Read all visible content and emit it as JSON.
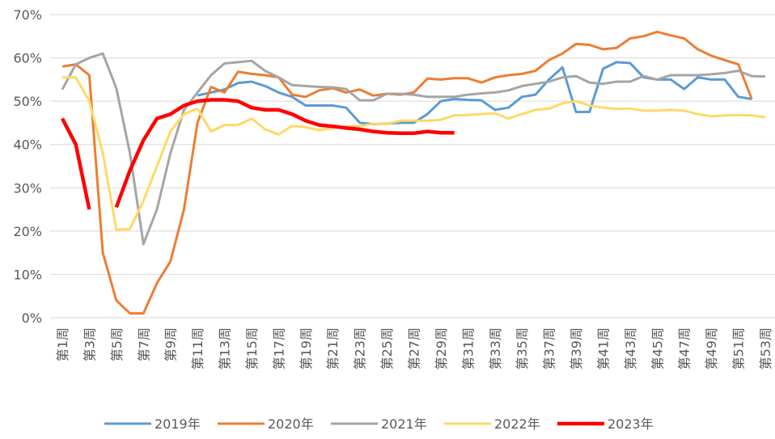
{
  "chart_data": {
    "type": "line",
    "categories": [
      "第1周",
      null,
      "第3周",
      null,
      "第5周",
      null,
      "第7周",
      null,
      "第9周",
      null,
      "第11周",
      null,
      "第13周",
      null,
      "第15周",
      null,
      "第17周",
      null,
      "第19周",
      null,
      "第21周",
      null,
      "第23周",
      null,
      "第25周",
      null,
      "第27周",
      null,
      "第29周",
      null,
      "第31周",
      null,
      "第33周",
      null,
      "第35周",
      null,
      "第37周",
      null,
      "第39周",
      null,
      "第41周",
      null,
      "第43周",
      null,
      "第45周",
      null,
      "第47周",
      null,
      "第49周",
      null,
      "第51周",
      null,
      "第53周"
    ],
    "series": [
      {
        "name": "2019年",
        "color": "#5b9bd5",
        "values": [
          null,
          null,
          null,
          null,
          null,
          null,
          null,
          null,
          null,
          null,
          51.3,
          52,
          52.7,
          54.2,
          54.5,
          53.5,
          52,
          51,
          49,
          49,
          49,
          48.5,
          45,
          44.7,
          44.8,
          45,
          45,
          47,
          50,
          50.5,
          50.3,
          50.2,
          48,
          48.5,
          51,
          51.5,
          55,
          57.8,
          47.5,
          47.5,
          57.5,
          59,
          58.8,
          55.5,
          55,
          55,
          52.8,
          55.5,
          55,
          55,
          51,
          50.5,
          null
        ]
      },
      {
        "name": "2020年",
        "color": "#ed7d31",
        "values": [
          58,
          58.5,
          56,
          15,
          4,
          1,
          1,
          8,
          13,
          25,
          45,
          53.3,
          52,
          56.8,
          56.3,
          56,
          55.5,
          51.5,
          51,
          52.5,
          53,
          52,
          52.7,
          51.3,
          51.7,
          51.5,
          52,
          55.2,
          55,
          55.3,
          55.3,
          54.3,
          55.5,
          56,
          56.3,
          57,
          59.5,
          61,
          63.2,
          63,
          62,
          62.3,
          64.5,
          65,
          66,
          65.2,
          64.5,
          62,
          60.5,
          59.5,
          58.5,
          50.5,
          null
        ]
      },
      {
        "name": "2021年",
        "color": "#a5a5a5",
        "values": [
          52.7,
          58.5,
          60,
          61,
          53,
          38,
          17,
          25,
          38,
          48,
          52,
          56,
          58.7,
          59,
          59.3,
          57,
          55.5,
          53.7,
          53.5,
          53.3,
          53.2,
          52.8,
          50.2,
          50.2,
          51.7,
          51.7,
          51.5,
          51,
          51,
          51,
          51.5,
          51.8,
          52,
          52.5,
          53.5,
          54,
          54.5,
          55.5,
          55.8,
          54.3,
          54,
          54.5,
          54.5,
          55.8,
          55,
          56,
          56,
          56,
          56.2,
          56.5,
          57,
          55.8,
          55.7
        ]
      },
      {
        "name": "2022年",
        "color": "#ffd966",
        "values": [
          55.5,
          55.5,
          50,
          38,
          20.3,
          20.5,
          27,
          35,
          43,
          47,
          48.3,
          43,
          44.5,
          44.5,
          46,
          43.5,
          42.3,
          44.3,
          44,
          43.3,
          43.8,
          44.2,
          44.2,
          44.8,
          44.7,
          45.5,
          45.5,
          45.5,
          45.7,
          46.7,
          46.8,
          47,
          47.2,
          46,
          47,
          48,
          48.3,
          49.5,
          50,
          49,
          48.5,
          48.2,
          48.3,
          47.8,
          47.8,
          48,
          47.8,
          47,
          46.5,
          46.7,
          46.8,
          46.7,
          46.3
        ]
      },
      {
        "name": "2023年",
        "color": "#ff0000",
        "values": [
          46,
          40,
          25,
          null,
          25.5,
          34,
          41,
          46,
          47,
          49,
          50,
          50.3,
          50.3,
          50,
          48.5,
          48,
          48,
          47,
          45.5,
          44.5,
          44.2,
          43.8,
          43.5,
          43,
          42.7,
          42.6,
          42.6,
          43,
          42.7,
          42.7,
          null,
          null,
          null,
          null,
          null,
          null,
          null,
          null,
          null,
          null,
          null,
          null,
          null,
          null,
          null,
          null,
          null,
          null,
          null,
          null,
          null,
          null,
          null
        ]
      }
    ],
    "ylim": [
      0,
      70
    ],
    "yticks": [
      {
        "value": 0,
        "label": "0%"
      },
      {
        "value": 10,
        "label": "10%"
      },
      {
        "value": 20,
        "label": "20%"
      },
      {
        "value": 30,
        "label": "30%"
      },
      {
        "value": 40,
        "label": "40%"
      },
      {
        "value": 50,
        "label": "50%"
      },
      {
        "value": 60,
        "label": "60%"
      },
      {
        "value": 70,
        "label": "70%"
      }
    ],
    "grid": true,
    "legend": "bottom"
  }
}
